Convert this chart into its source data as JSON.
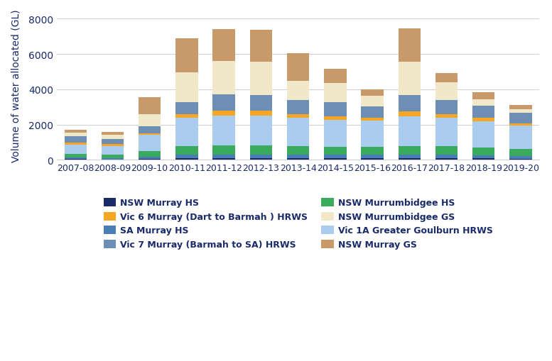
{
  "years": [
    "2007-08",
    "2008-09",
    "2009-10",
    "2010-11",
    "2011-12",
    "2012-13",
    "2013-14",
    "2014-15",
    "2015-16",
    "2016-17",
    "2017-18",
    "2018-19",
    "2019-20"
  ],
  "series": {
    "NSW Murray HS": [
      50,
      30,
      50,
      80,
      80,
      80,
      80,
      80,
      80,
      80,
      80,
      80,
      70
    ],
    "SA Murray HS": [
      80,
      70,
      120,
      200,
      200,
      200,
      200,
      200,
      200,
      200,
      200,
      180,
      160
    ],
    "NSW Murrumbidgee HS": [
      200,
      180,
      350,
      500,
      550,
      550,
      500,
      480,
      450,
      500,
      500,
      430,
      400
    ],
    "Vic 1A Greater Goulburn HRWS": [
      550,
      520,
      900,
      1600,
      1700,
      1700,
      1600,
      1500,
      1500,
      1700,
      1600,
      1500,
      1300
    ],
    "Vic 6 Murray (Dart to Barmah ) HRWS": [
      120,
      110,
      90,
      200,
      280,
      250,
      200,
      200,
      160,
      280,
      230,
      180,
      150
    ],
    "Vic 7 Murray (Barmah to SA) HRWS": [
      350,
      280,
      400,
      700,
      900,
      900,
      800,
      800,
      650,
      900,
      800,
      700,
      600
    ],
    "NSW Murrumbidgee GS": [
      200,
      250,
      700,
      1700,
      1900,
      1900,
      1100,
      1100,
      600,
      1900,
      1000,
      350,
      200
    ],
    "NSW Murray GS": [
      150,
      150,
      950,
      1900,
      1800,
      1800,
      1550,
      800,
      350,
      1900,
      500,
      400,
      250
    ]
  },
  "colors": {
    "NSW Murray HS": "#1a2b6b",
    "SA Murray HS": "#4a7fb5",
    "NSW Murrumbidgee HS": "#3aaa5c",
    "Vic 1A Greater Goulburn HRWS": "#aaccee",
    "Vic 6 Murray (Dart to Barmah ) HRWS": "#f5a623",
    "Vic 7 Murray (Barmah to SA) HRWS": "#6e8fb5",
    "NSW Murrumbidgee GS": "#f0e8c8",
    "NSW Murray GS": "#c89a6a"
  },
  "legend_left": [
    "NSW Murray HS",
    "SA Murray HS",
    "NSW Murrumbidgee HS",
    "Vic 1A Greater Goulburn HRWS"
  ],
  "legend_right": [
    "Vic 6 Murray (Dart to Barmah ) HRWS",
    "Vic 7 Murray (Barmah to SA) HRWS",
    "NSW Murrumbidgee GS",
    "NSW Murray GS"
  ],
  "ylabel": "Volume of water allocated (GL)",
  "ylim": [
    0,
    8500
  ],
  "yticks": [
    0,
    2000,
    4000,
    6000,
    8000
  ],
  "background_color": "#ffffff",
  "grid_color": "#d0d0d0",
  "text_color": "#1a2b6b",
  "bar_width": 0.6
}
